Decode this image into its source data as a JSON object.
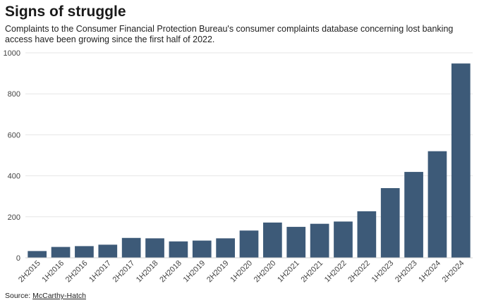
{
  "chart_data": {
    "type": "bar",
    "title": "Signs of struggle",
    "subtitle": "Complaints to the Consumer Financial Protection Bureau's consumer complaints database concerning lost banking access have been growing since the first half of 2022.",
    "categories": [
      "2H2015",
      "1H2016",
      "2H2016",
      "1H2017",
      "2H2017",
      "1H2018",
      "2H2018",
      "1H2019",
      "2H2019",
      "1H2020",
      "2H2020",
      "1H2021",
      "2H2021",
      "1H2022",
      "2H2022",
      "1H2023",
      "2H2023",
      "1H2024",
      "2H2024"
    ],
    "values": [
      33,
      53,
      57,
      64,
      97,
      95,
      80,
      84,
      95,
      133,
      172,
      151,
      166,
      177,
      227,
      340,
      419,
      520,
      948
    ],
    "ylim": [
      0,
      1000
    ],
    "yticks": [
      0,
      200,
      400,
      600,
      800,
      1000
    ],
    "xlabel": "",
    "ylabel": "",
    "grid": true,
    "bar_color": "#3d5a78"
  },
  "source": {
    "label": "Source:",
    "link_text": "McCarthy-Hatch"
  }
}
